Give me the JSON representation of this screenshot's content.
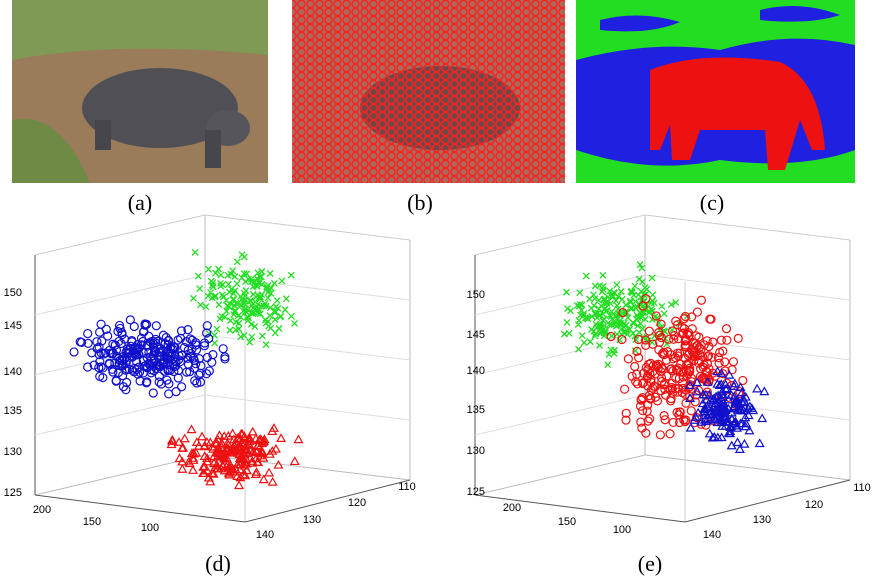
{
  "panels": [
    {
      "label": "(a)"
    },
    {
      "label": "(b)"
    },
    {
      "label": "(c)"
    }
  ],
  "plots": [
    {
      "label": "(d)",
      "z_ticks": [
        "150",
        "145",
        "140",
        "135",
        "130",
        "125"
      ],
      "x_ticks": [
        "200",
        "150",
        "100"
      ],
      "y_ticks": [
        "140",
        "130",
        "120",
        "110"
      ]
    },
    {
      "label": "(e)",
      "z_ticks": [
        "150",
        "145",
        "140",
        "135",
        "130",
        "125"
      ],
      "x_ticks": [
        "200",
        "150",
        "100"
      ],
      "y_ticks": [
        "140",
        "130",
        "120",
        "110"
      ]
    }
  ]
}
